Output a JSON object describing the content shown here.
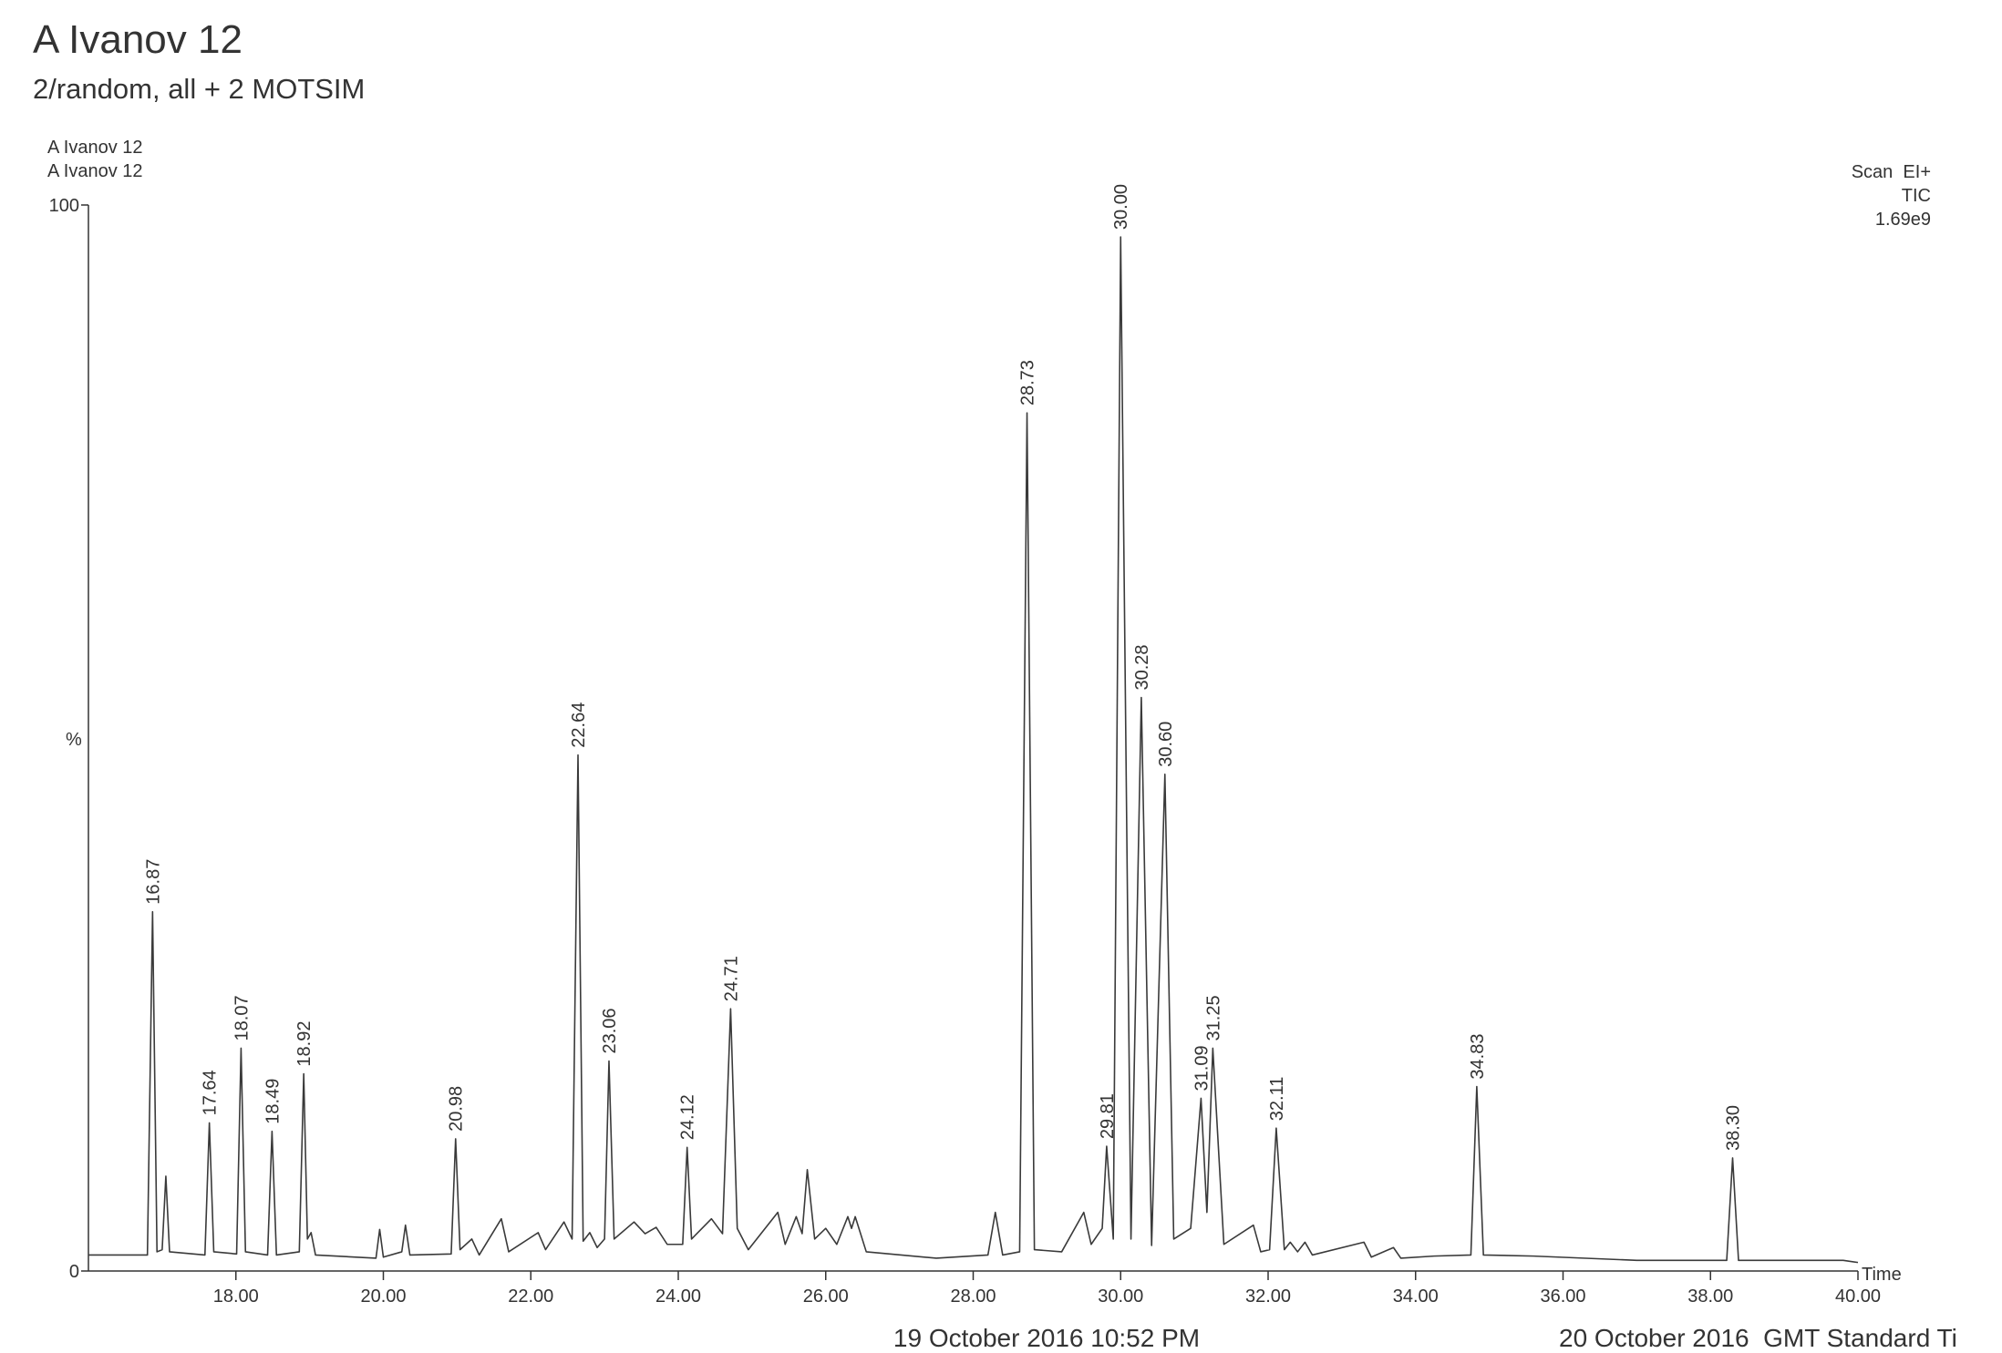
{
  "chart_data": {
    "type": "line",
    "title": "A Ivanov 12",
    "subtitle": "2/random, all + 2 MOTSIM",
    "header_lines": [
      "A Ivanov 12",
      "A Ivanov 12"
    ],
    "info_lines": [
      "Scan  EI+",
      "TIC",
      "1.69e9"
    ],
    "ylabel": "%",
    "xlabel": "Time",
    "footer_left": "19 October 2016 10:52 PM",
    "footer_right": "20 October 2016  GMT Standard Ti",
    "xlim": [
      16,
      40
    ],
    "ylim": [
      0,
      100
    ],
    "yticks": [
      0,
      100
    ],
    "xticks": [
      {
        "value": 18,
        "label": "18.00"
      },
      {
        "value": 20,
        "label": "20.00"
      },
      {
        "value": 22,
        "label": "22.00"
      },
      {
        "value": 24,
        "label": "24.00"
      },
      {
        "value": 26,
        "label": "26.00"
      },
      {
        "value": 28,
        "label": "28.00"
      },
      {
        "value": 30,
        "label": "30.00"
      },
      {
        "value": 32,
        "label": "32.00"
      },
      {
        "value": 34,
        "label": "34.00"
      },
      {
        "value": 36,
        "label": "36.00"
      },
      {
        "value": 38,
        "label": "38.00"
      },
      {
        "value": 40,
        "label": "40.00"
      }
    ],
    "series": [
      {
        "color": "#3a3a3a",
        "x": [
          16.0,
          16.5,
          16.8,
          16.87,
          16.93,
          17.0,
          17.05,
          17.1,
          17.58,
          17.64,
          17.7,
          18.01,
          18.07,
          18.13,
          18.43,
          18.49,
          18.55,
          18.86,
          18.92,
          18.97,
          19.02,
          19.08,
          19.9,
          19.95,
          20.0,
          20.25,
          20.3,
          20.36,
          20.92,
          20.98,
          21.04,
          21.2,
          21.3,
          21.6,
          21.7,
          22.1,
          22.2,
          22.45,
          22.56,
          22.64,
          22.71,
          22.8,
          22.9,
          23.0,
          23.06,
          23.13,
          23.4,
          23.55,
          23.7,
          23.85,
          24.06,
          24.12,
          24.18,
          24.45,
          24.6,
          24.71,
          24.8,
          24.95,
          25.35,
          25.45,
          25.6,
          25.68,
          25.75,
          25.85,
          26.0,
          26.15,
          26.3,
          26.35,
          26.4,
          26.55,
          27.5,
          28.2,
          28.3,
          28.4,
          28.63,
          28.73,
          28.83,
          29.2,
          29.5,
          29.6,
          29.75,
          29.81,
          29.9,
          30.0,
          30.14,
          30.28,
          30.42,
          30.6,
          30.72,
          30.95,
          31.09,
          31.17,
          31.25,
          31.4,
          31.8,
          31.9,
          32.02,
          32.11,
          32.22,
          32.3,
          32.4,
          32.5,
          32.6,
          33.3,
          33.4,
          33.7,
          33.8,
          34.25,
          34.75,
          34.83,
          34.92,
          35.6,
          37.0,
          38.22,
          38.3,
          38.38,
          39.8,
          40.0
        ],
        "values": [
          1.5,
          1.5,
          1.5,
          33.7,
          1.8,
          2.0,
          8.9,
          1.8,
          1.5,
          13.9,
          1.8,
          1.6,
          20.9,
          1.8,
          1.5,
          13.1,
          1.5,
          1.8,
          18.5,
          3.0,
          3.6,
          1.5,
          1.2,
          3.9,
          1.3,
          1.8,
          4.3,
          1.5,
          1.6,
          12.4,
          2.0,
          3.0,
          1.5,
          4.9,
          1.8,
          3.6,
          2.0,
          4.6,
          3.0,
          48.4,
          2.8,
          3.6,
          2.2,
          3.0,
          19.7,
          3.0,
          4.6,
          3.5,
          4.1,
          2.5,
          2.5,
          11.6,
          3.0,
          4.9,
          3.5,
          24.6,
          4.0,
          2.0,
          5.5,
          2.5,
          5.1,
          3.5,
          9.5,
          3.0,
          4.0,
          2.5,
          5.1,
          4.0,
          5.1,
          1.8,
          1.2,
          1.5,
          5.5,
          1.5,
          1.8,
          80.5,
          2.0,
          1.8,
          5.5,
          2.5,
          4.0,
          11.7,
          3.0,
          97,
          3.0,
          53.8,
          2.4,
          46.6,
          3.0,
          4.0,
          16.2,
          5.5,
          20.9,
          2.5,
          4.3,
          1.8,
          2.0,
          13.4,
          2.0,
          2.7,
          1.8,
          2.7,
          1.5,
          2.7,
          1.3,
          2.2,
          1.2,
          1.4,
          1.5,
          17.3,
          1.5,
          1.4,
          1.0,
          1.0,
          10.6,
          1.0,
          1.0,
          0.8
        ]
      }
    ],
    "annotations": [
      16.87,
      17.64,
      18.07,
      18.49,
      18.92,
      20.98,
      22.64,
      23.06,
      24.12,
      24.71,
      28.73,
      29.81,
      {
        "value": 30,
        "label": "30.00"
      },
      30.28,
      {
        "value": 30.6,
        "label": "30.60"
      },
      31.09,
      31.25,
      32.11,
      34.83,
      {
        "value": 38.3,
        "label": "38.30"
      }
    ]
  }
}
